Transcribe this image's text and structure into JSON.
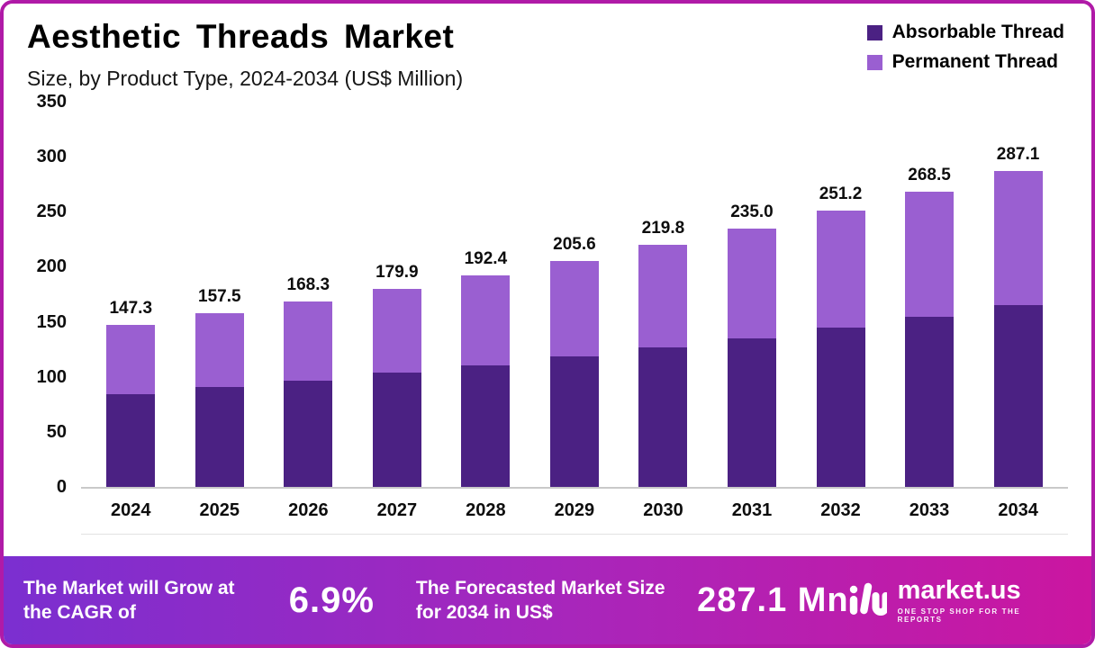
{
  "frame": {
    "border_color": "#B01AA7"
  },
  "header": {
    "title": "Aesthetic Threads Market",
    "subtitle": "Size, by Product Type, 2024-2034 (US$ Million)"
  },
  "legend": [
    {
      "label": "Absorbable Thread",
      "color": "#4B2183"
    },
    {
      "label": "Permanent Thread",
      "color": "#9A5FD1"
    }
  ],
  "chart_data": {
    "type": "bar",
    "stacked": true,
    "title": "Aesthetic Threads Market",
    "subtitle": "Size, by Product Type, 2024-2034 (US$ Million)",
    "ylabel": "US$ Million",
    "xlabel": "",
    "ylim": [
      0,
      350
    ],
    "yticks": [
      350,
      300,
      250,
      200,
      150,
      100,
      50,
      0
    ],
    "grid": false,
    "legend_position": "top-right",
    "categories": [
      "2024",
      "2025",
      "2026",
      "2027",
      "2028",
      "2029",
      "2030",
      "2031",
      "2032",
      "2033",
      "2034"
    ],
    "totals": [
      147.3,
      157.5,
      168.3,
      179.9,
      192.4,
      205.6,
      219.8,
      235.0,
      251.2,
      268.5,
      287.1
    ],
    "total_labels": [
      "147.3",
      "157.5",
      "168.3",
      "179.9",
      "192.4",
      "205.6",
      "219.8",
      "235.0",
      "251.2",
      "268.5",
      "287.1"
    ],
    "series": [
      {
        "name": "Absorbable Thread",
        "color": "#4B2183",
        "values": [
          84.6,
          90.4,
          96.7,
          103.5,
          110.6,
          118.3,
          126.5,
          135.3,
          144.7,
          154.8,
          165.6
        ]
      },
      {
        "name": "Permanent Thread",
        "color": "#9A5FD1",
        "values": [
          62.7,
          67.1,
          71.6,
          76.4,
          81.8,
          87.3,
          93.3,
          99.7,
          106.5,
          113.7,
          121.5
        ]
      }
    ]
  },
  "banner": {
    "gradient_start": "#7B2FD0",
    "gradient_mid": "#A826BB",
    "gradient_end": "#CB16A0",
    "cagr_text": "The Market will Grow at the CAGR of",
    "cagr_value": "6.9%",
    "forecast_text": "The Forecasted Market Size for 2034 in US$",
    "forecast_value": "287.1 Mn",
    "brand": "market.us",
    "brand_tagline": "ONE STOP SHOP FOR THE REPORTS"
  }
}
